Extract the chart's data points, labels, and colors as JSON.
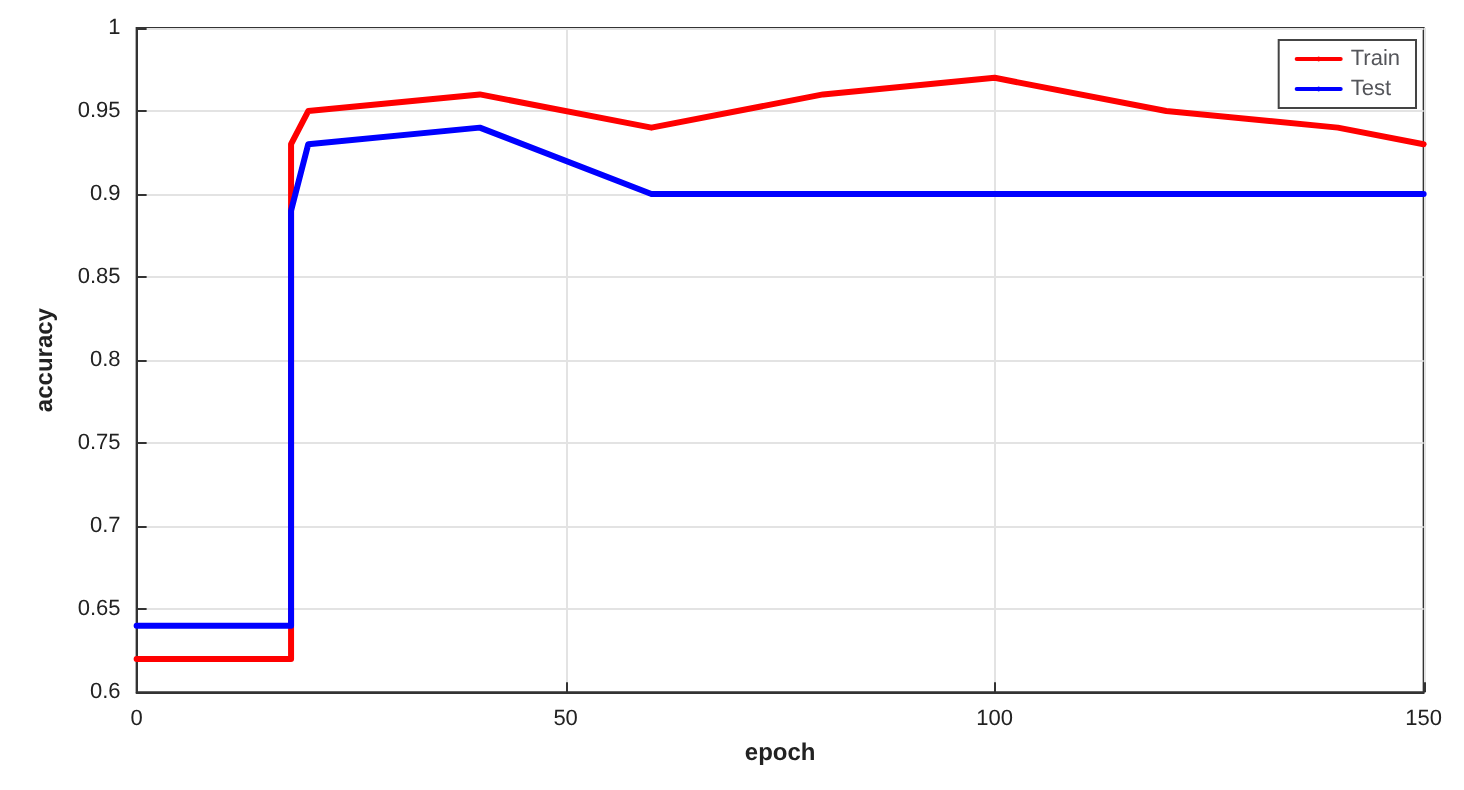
{
  "chart_data": {
    "type": "line",
    "xlabel": "epoch",
    "ylabel": "accuracy",
    "xlim": [
      0,
      150
    ],
    "xticks": [
      0,
      50,
      100,
      150
    ],
    "ylim": [
      0.6,
      1
    ],
    "yticks": [
      0.6,
      0.65,
      0.7,
      0.75,
      0.8,
      0.85,
      0.9,
      0.95,
      1
    ],
    "grid": true,
    "legend": "top right",
    "marker": "none",
    "line_style": "solid",
    "series": [
      {
        "name": "Train",
        "color": "#ff0000",
        "x": [
          0,
          18,
          18,
          20,
          40,
          60,
          80,
          100,
          120,
          140,
          150
        ],
        "values": [
          0.62,
          0.62,
          0.93,
          0.95,
          0.96,
          0.94,
          0.96,
          0.97,
          0.95,
          0.94,
          0.93
        ]
      },
      {
        "name": "Test",
        "color": "#0000ff",
        "x": [
          0,
          18,
          18,
          20,
          40,
          60,
          80,
          100,
          120,
          140,
          150
        ],
        "values": [
          0.64,
          0.64,
          0.89,
          0.93,
          0.94,
          0.9,
          0.9,
          0.9,
          0.9,
          0.9,
          0.9
        ]
      }
    ]
  }
}
